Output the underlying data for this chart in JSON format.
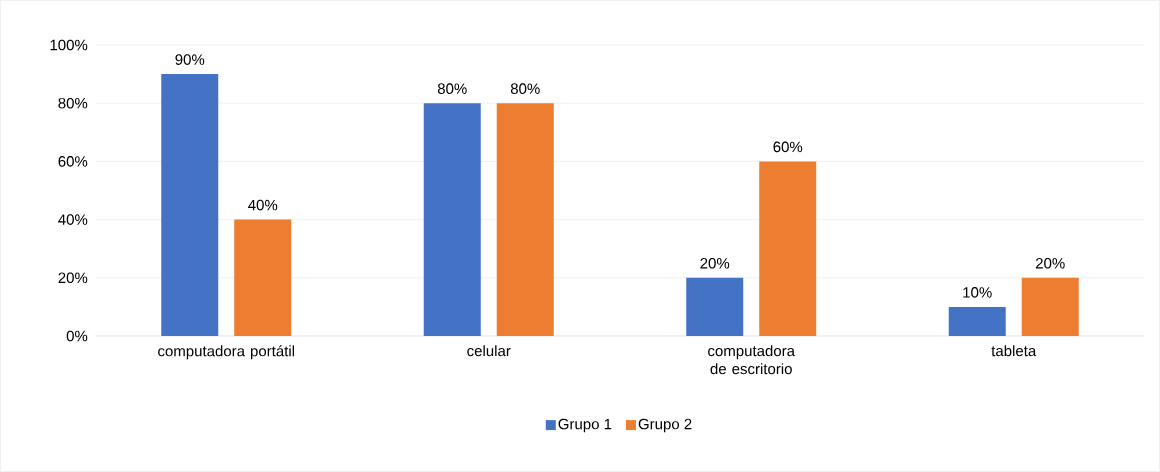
{
  "chart_data": {
    "type": "bar",
    "categories": [
      "computadora portátil",
      "celular",
      "computadora de escritorio",
      "tableta"
    ],
    "series": [
      {
        "name": "Grupo 1",
        "color": "#4472c4",
        "values": [
          90,
          80,
          20,
          10
        ],
        "value_labels": [
          "90%",
          "80%",
          "20%",
          "10%"
        ]
      },
      {
        "name": "Grupo 2",
        "color": "#ed7d31",
        "values": [
          40,
          80,
          60,
          20
        ],
        "value_labels": [
          "40%",
          "80%",
          "60%",
          "20%"
        ]
      }
    ],
    "ylim": [
      0,
      100
    ],
    "yticks": [
      {
        "value": 0,
        "label": "0%"
      },
      {
        "value": 20,
        "label": "20%"
      },
      {
        "value": 40,
        "label": "40%"
      },
      {
        "value": 60,
        "label": "60%"
      },
      {
        "value": 80,
        "label": "80%"
      },
      {
        "value": 100,
        "label": "100%"
      }
    ],
    "grid": "y",
    "legend": "bottom"
  }
}
